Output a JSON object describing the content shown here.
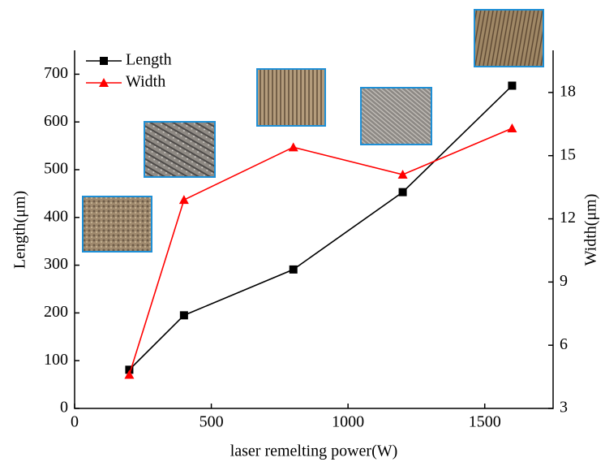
{
  "chart_data": {
    "type": "line",
    "x_label": "laser remelting power(W)",
    "y_label": "Length(μm)",
    "y2_label": "Width(μm)",
    "x": [
      200,
      400,
      800,
      1200,
      1600
    ],
    "series": [
      {
        "name": "Length",
        "color": "#000000",
        "marker": "square",
        "values": [
          81,
          195,
          291,
          453,
          676
        ]
      },
      {
        "name": "Width",
        "color": "#ff0000",
        "marker": "triangle",
        "axis": "y2",
        "values": [
          4.6,
          12.9,
          15.4,
          14.1,
          16.3
        ]
      }
    ],
    "xlim": [
      0,
      1750
    ],
    "xticks": [
      0,
      500,
      1000,
      1500
    ],
    "ylim": [
      0,
      750
    ],
    "yticks": [
      0,
      100,
      200,
      300,
      400,
      500,
      600,
      700
    ],
    "y2lim": [
      3,
      20
    ],
    "y2ticks": [
      3,
      6,
      9,
      12,
      15,
      18
    ],
    "legend": "upper-left"
  }
}
